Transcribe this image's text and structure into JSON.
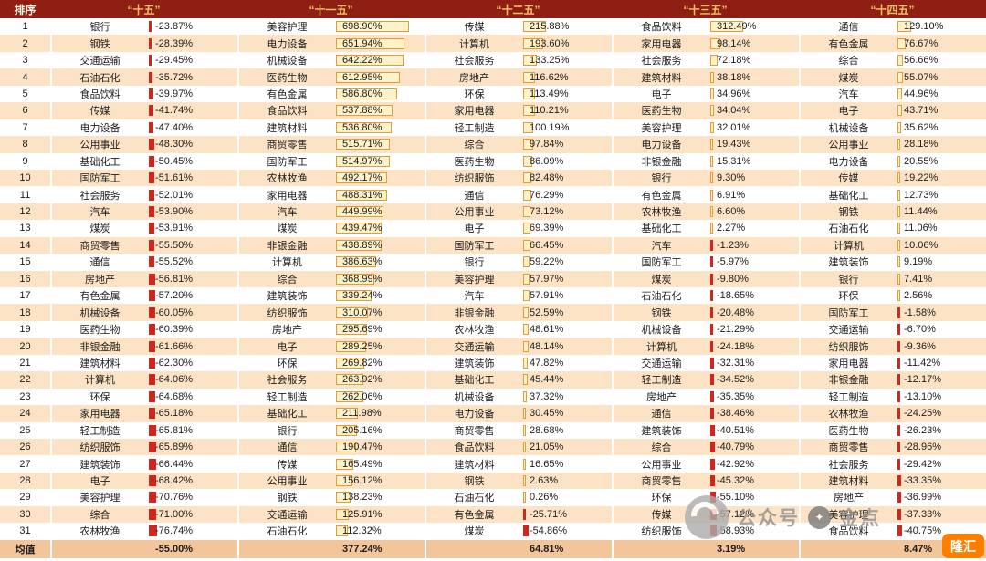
{
  "chart_data": {
    "type": "table",
    "rank_header": "排序",
    "mean_label": "均值",
    "value_unit": "%",
    "bar_scale_max": 698.9,
    "columns": [
      {
        "period": "“十五”",
        "mean": -55.0,
        "rows": [
          [
            "银行",
            -23.87
          ],
          [
            "钢铁",
            -28.39
          ],
          [
            "交通运输",
            -29.45
          ],
          [
            "石油石化",
            -35.72
          ],
          [
            "食品饮料",
            -39.97
          ],
          [
            "传媒",
            -41.74
          ],
          [
            "电力设备",
            -47.4
          ],
          [
            "公用事业",
            -48.3
          ],
          [
            "基础化工",
            -50.45
          ],
          [
            "国防军工",
            -51.61
          ],
          [
            "社会服务",
            -52.01
          ],
          [
            "汽车",
            -53.9
          ],
          [
            "煤炭",
            -53.91
          ],
          [
            "商贸零售",
            -55.5
          ],
          [
            "通信",
            -55.52
          ],
          [
            "房地产",
            -56.81
          ],
          [
            "有色金属",
            -57.2
          ],
          [
            "机械设备",
            -60.05
          ],
          [
            "医药生物",
            -60.39
          ],
          [
            "非银金融",
            -61.66
          ],
          [
            "建筑材料",
            -62.3
          ],
          [
            "计算机",
            -64.06
          ],
          [
            "环保",
            -64.68
          ],
          [
            "家用电器",
            -65.18
          ],
          [
            "轻工制造",
            -65.81
          ],
          [
            "纺织服饰",
            -65.89
          ],
          [
            "建筑装饰",
            -66.44
          ],
          [
            "电子",
            -68.42
          ],
          [
            "美容护理",
            -70.76
          ],
          [
            "综合",
            -71.0
          ],
          [
            "农林牧渔",
            -76.74
          ]
        ]
      },
      {
        "period": "“十一五”",
        "mean": 377.24,
        "rows": [
          [
            "美容护理",
            698.9
          ],
          [
            "电力设备",
            651.94
          ],
          [
            "机械设备",
            642.22
          ],
          [
            "医药生物",
            612.95
          ],
          [
            "有色金属",
            586.8
          ],
          [
            "食品饮料",
            537.88
          ],
          [
            "建筑材料",
            536.8
          ],
          [
            "商贸零售",
            515.71
          ],
          [
            "国防军工",
            514.97
          ],
          [
            "农林牧渔",
            492.17
          ],
          [
            "家用电器",
            488.31
          ],
          [
            "汽车",
            449.99
          ],
          [
            "煤炭",
            439.47
          ],
          [
            "非银金融",
            438.89
          ],
          [
            "计算机",
            386.63
          ],
          [
            "综合",
            368.99
          ],
          [
            "建筑装饰",
            339.24
          ],
          [
            "纺织服饰",
            310.07
          ],
          [
            "房地产",
            295.69
          ],
          [
            "电子",
            289.25
          ],
          [
            "环保",
            269.82
          ],
          [
            "社会服务",
            263.92
          ],
          [
            "轻工制造",
            262.06
          ],
          [
            "基础化工",
            211.98
          ],
          [
            "银行",
            205.16
          ],
          [
            "通信",
            190.47
          ],
          [
            "传媒",
            165.49
          ],
          [
            "公用事业",
            156.12
          ],
          [
            "钢铁",
            138.23
          ],
          [
            "交通运输",
            125.91
          ],
          [
            "石油石化",
            112.32
          ]
        ]
      },
      {
        "period": "“十二五”",
        "mean": 64.81,
        "rows": [
          [
            "传媒",
            215.88
          ],
          [
            "计算机",
            193.6
          ],
          [
            "社会服务",
            133.25
          ],
          [
            "房地产",
            116.62
          ],
          [
            "环保",
            113.49
          ],
          [
            "家用电器",
            110.21
          ],
          [
            "轻工制造",
            100.19
          ],
          [
            "综合",
            97.84
          ],
          [
            "医药生物",
            86.09
          ],
          [
            "纺织服饰",
            82.48
          ],
          [
            "通信",
            76.29
          ],
          [
            "公用事业",
            73.12
          ],
          [
            "电子",
            69.39
          ],
          [
            "国防军工",
            66.45
          ],
          [
            "银行",
            59.22
          ],
          [
            "美容护理",
            57.97
          ],
          [
            "汽车",
            57.91
          ],
          [
            "非银金融",
            52.59
          ],
          [
            "农林牧渔",
            48.61
          ],
          [
            "交通运输",
            48.14
          ],
          [
            "建筑装饰",
            47.82
          ],
          [
            "基础化工",
            45.44
          ],
          [
            "机械设备",
            37.32
          ],
          [
            "电力设备",
            30.45
          ],
          [
            "商贸零售",
            28.68
          ],
          [
            "食品饮料",
            21.05
          ],
          [
            "建筑材料",
            16.65
          ],
          [
            "钢铁",
            2.63
          ],
          [
            "石油石化",
            0.26
          ],
          [
            "有色金属",
            -25.71
          ],
          [
            "煤炭",
            -54.86
          ]
        ]
      },
      {
        "period": "“十三五”",
        "mean": 3.19,
        "rows": [
          [
            "食品饮料",
            312.49
          ],
          [
            "家用电器",
            98.14
          ],
          [
            "社会服务",
            72.18
          ],
          [
            "建筑材料",
            38.18
          ],
          [
            "电子",
            34.96
          ],
          [
            "医药生物",
            34.04
          ],
          [
            "美容护理",
            32.01
          ],
          [
            "电力设备",
            19.43
          ],
          [
            "非银金融",
            15.31
          ],
          [
            "银行",
            9.3
          ],
          [
            "有色金属",
            6.91
          ],
          [
            "农林牧渔",
            6.6
          ],
          [
            "基础化工",
            2.27
          ],
          [
            "汽车",
            -1.23
          ],
          [
            "国防军工",
            -5.97
          ],
          [
            "煤炭",
            -9.8
          ],
          [
            "石油石化",
            -18.65
          ],
          [
            "钢铁",
            -20.48
          ],
          [
            "机械设备",
            -21.29
          ],
          [
            "计算机",
            -24.18
          ],
          [
            "交通运输",
            -32.31
          ],
          [
            "轻工制造",
            -34.52
          ],
          [
            "房地产",
            -35.35
          ],
          [
            "通信",
            -38.46
          ],
          [
            "建筑装饰",
            -40.51
          ],
          [
            "综合",
            -40.79
          ],
          [
            "公用事业",
            -42.92
          ],
          [
            "商贸零售",
            -45.32
          ],
          [
            "环保",
            -55.1
          ],
          [
            "传媒",
            -57.12
          ],
          [
            "纺织服饰",
            -58.93
          ]
        ]
      },
      {
        "period": "“十四五”",
        "mean": 8.47,
        "rows": [
          [
            "通信",
            129.1
          ],
          [
            "有色金属",
            76.67
          ],
          [
            "综合",
            56.66
          ],
          [
            "煤炭",
            55.07
          ],
          [
            "汽车",
            44.96
          ],
          [
            "电子",
            43.71
          ],
          [
            "机械设备",
            35.62
          ],
          [
            "公用事业",
            28.18
          ],
          [
            "电力设备",
            20.55
          ],
          [
            "传媒",
            19.22
          ],
          [
            "基础化工",
            12.73
          ],
          [
            "钢铁",
            11.44
          ],
          [
            "石油石化",
            11.06
          ],
          [
            "计算机",
            10.06
          ],
          [
            "建筑装饰",
            9.19
          ],
          [
            "银行",
            7.41
          ],
          [
            "环保",
            2.56
          ],
          [
            "国防军工",
            -1.58
          ],
          [
            "交通运输",
            -6.7
          ],
          [
            "纺织服饰",
            -9.36
          ],
          [
            "家用电器",
            -11.42
          ],
          [
            "非银金融",
            -12.17
          ],
          [
            "轻工制造",
            -13.1
          ],
          [
            "农林牧渔",
            -24.25
          ],
          [
            "医药生物",
            -26.23
          ],
          [
            "商贸零售",
            -28.96
          ],
          [
            "社会服务",
            -29.42
          ],
          [
            "建筑材料",
            -33.35
          ],
          [
            "房地产",
            -36.99
          ],
          [
            "美容护理",
            -37.33
          ],
          [
            "食品饮料",
            -40.75
          ]
        ]
      }
    ]
  },
  "watermarks": {
    "gray_badge": {
      "text_left": "公众号",
      "text_right": "金点"
    },
    "corner_logo_text": "隆汇"
  },
  "colors": {
    "header_bg": "#8E1F12",
    "period_text": "#F7C168",
    "row_alt": "#FCE3C5",
    "mean_bg": "#F3C59B",
    "bar_pos_fill": "#FDF2CA",
    "bar_pos_border": "#E89B33",
    "bar_neg": "#D2251B"
  }
}
